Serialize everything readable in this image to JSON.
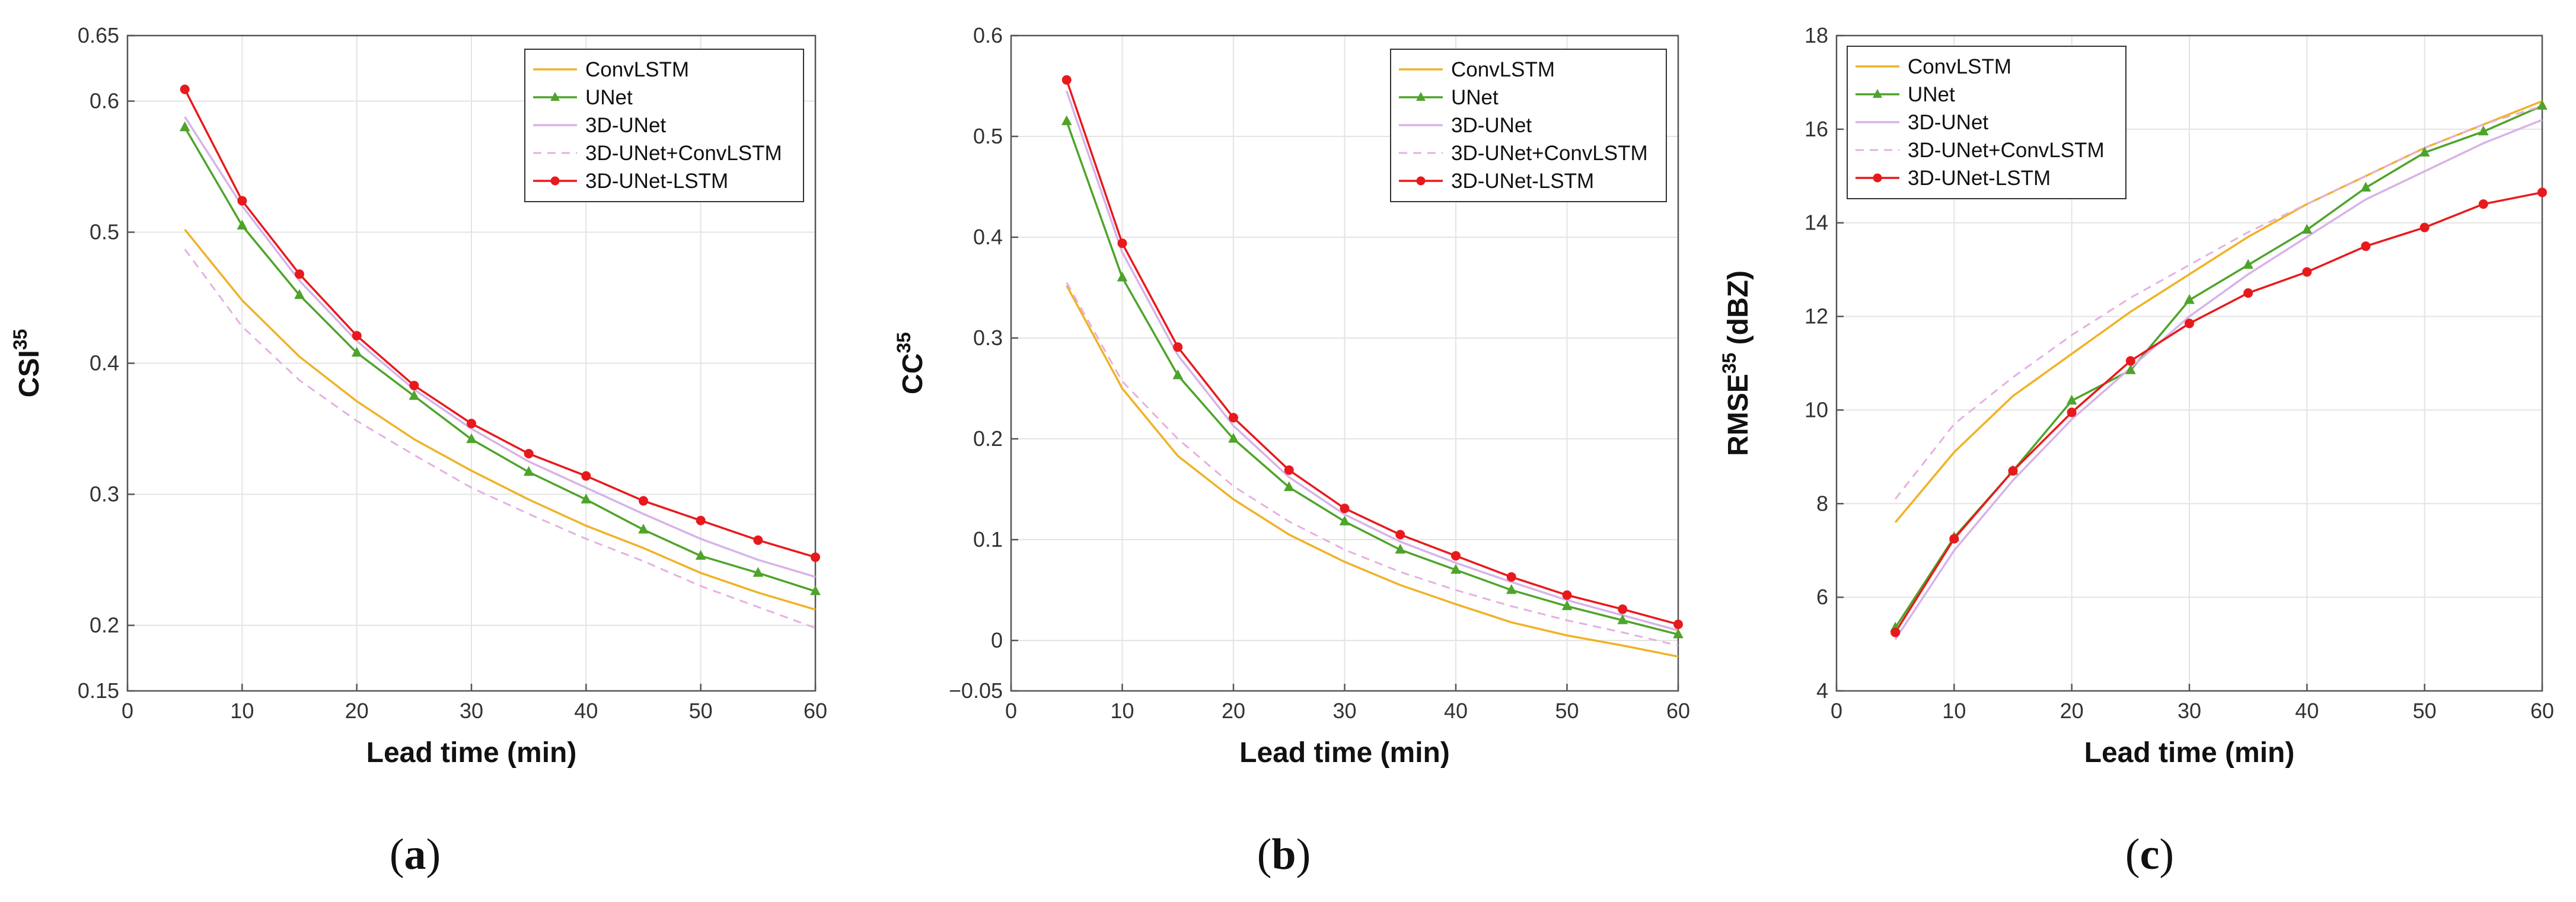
{
  "colors": {
    "ConvLSTM": "#f0b226",
    "UNet": "#4ea42a",
    "3D-UNet": "#d7b3e8",
    "3D-UNet+ConvLSTM": "#e6b0e0",
    "3D-UNet-LSTM": "#e8191c"
  },
  "chart_data": [
    {
      "type": "line",
      "caption": "a",
      "xlabel": "Lead time (min)",
      "ylabel": "CSI",
      "ylabel_sup": "35",
      "xlim": [
        0,
        60
      ],
      "ylim": [
        0.15,
        0.65
      ],
      "xticks": [
        "0",
        "10",
        "20",
        "30",
        "40",
        "50",
        "60"
      ],
      "yticks": [
        "0.15",
        "0.2",
        "0.3",
        "0.4",
        "0.5",
        "0.6",
        "0.65"
      ],
      "ytick_values": [
        0.15,
        0.2,
        0.3,
        0.4,
        0.5,
        0.6,
        0.65
      ],
      "grid": true,
      "legend": "top-right",
      "x": [
        5,
        10,
        15,
        20,
        25,
        30,
        35,
        40,
        45,
        50,
        55,
        60
      ],
      "series": [
        {
          "name": "ConvLSTM",
          "style": "solid",
          "marker": "none",
          "values": [
            0.502,
            0.448,
            0.405,
            0.371,
            0.342,
            0.318,
            0.296,
            0.276,
            0.259,
            0.24,
            0.225,
            0.212
          ]
        },
        {
          "name": "UNet",
          "style": "solid",
          "marker": "triangle",
          "values": [
            0.58,
            0.505,
            0.452,
            0.408,
            0.375,
            0.342,
            0.317,
            0.296,
            0.273,
            0.253,
            0.24,
            0.226
          ]
        },
        {
          "name": "3D-UNet",
          "style": "solid",
          "marker": "none",
          "values": [
            0.588,
            0.52,
            0.463,
            0.417,
            0.38,
            0.35,
            0.325,
            0.305,
            0.285,
            0.266,
            0.25,
            0.237
          ]
        },
        {
          "name": "3D-UNet+ConvLSTM",
          "style": "dashed",
          "marker": "none",
          "values": [
            0.487,
            0.428,
            0.387,
            0.356,
            0.33,
            0.305,
            0.285,
            0.266,
            0.249,
            0.23,
            0.214,
            0.198
          ]
        },
        {
          "name": "3D-UNet-LSTM",
          "style": "solid",
          "marker": "dot",
          "values": [
            0.609,
            0.524,
            0.468,
            0.421,
            0.383,
            0.354,
            0.331,
            0.314,
            0.295,
            0.28,
            0.265,
            0.252
          ]
        }
      ]
    },
    {
      "type": "line",
      "caption": "b",
      "xlabel": "Lead time (min)",
      "ylabel": "CC",
      "ylabel_sup": "35",
      "xlim": [
        0,
        60
      ],
      "ylim": [
        -0.05,
        0.6
      ],
      "xticks": [
        "0",
        "10",
        "20",
        "30",
        "40",
        "50",
        "60"
      ],
      "yticks": [
        "−0.05",
        "0",
        "0.1",
        "0.2",
        "0.3",
        "0.4",
        "0.5",
        "0.6"
      ],
      "ytick_values": [
        -0.05,
        0,
        0.1,
        0.2,
        0.3,
        0.4,
        0.5,
        0.6
      ],
      "grid": true,
      "legend": "top-right",
      "x": [
        5,
        10,
        15,
        20,
        25,
        30,
        35,
        40,
        45,
        50,
        55,
        60
      ],
      "series": [
        {
          "name": "ConvLSTM",
          "style": "solid",
          "marker": "none",
          "values": [
            0.352,
            0.25,
            0.183,
            0.14,
            0.105,
            0.078,
            0.055,
            0.036,
            0.018,
            0.005,
            -0.005,
            -0.016
          ]
        },
        {
          "name": "UNet",
          "style": "solid",
          "marker": "triangle",
          "values": [
            0.515,
            0.36,
            0.263,
            0.2,
            0.152,
            0.118,
            0.09,
            0.07,
            0.05,
            0.034,
            0.02,
            0.006
          ]
        },
        {
          "name": "3D-UNet",
          "style": "solid",
          "marker": "none",
          "values": [
            0.545,
            0.385,
            0.283,
            0.213,
            0.162,
            0.125,
            0.098,
            0.077,
            0.058,
            0.04,
            0.025,
            0.01
          ]
        },
        {
          "name": "3D-UNet+ConvLSTM",
          "style": "dashed",
          "marker": "none",
          "values": [
            0.355,
            0.257,
            0.2,
            0.153,
            0.118,
            0.09,
            0.068,
            0.05,
            0.034,
            0.02,
            0.008,
            -0.005
          ]
        },
        {
          "name": "3D-UNet-LSTM",
          "style": "solid",
          "marker": "dot",
          "values": [
            0.556,
            0.394,
            0.291,
            0.221,
            0.169,
            0.131,
            0.105,
            0.084,
            0.063,
            0.045,
            0.031,
            0.016
          ]
        }
      ]
    },
    {
      "type": "line",
      "caption": "c",
      "xlabel": "Lead time (min)",
      "ylabel": "RMSE",
      "ylabel_sup": "35",
      "ylabel_suffix": " (dBZ)",
      "xlim": [
        0,
        60
      ],
      "ylim": [
        4,
        18
      ],
      "xticks": [
        "0",
        "10",
        "20",
        "30",
        "40",
        "50",
        "60"
      ],
      "yticks": [
        "4",
        "6",
        "8",
        "10",
        "12",
        "14",
        "16",
        "18"
      ],
      "ytick_values": [
        4,
        6,
        8,
        10,
        12,
        14,
        16,
        18
      ],
      "grid": true,
      "legend": "top-left",
      "x": [
        5,
        10,
        15,
        20,
        25,
        30,
        35,
        40,
        45,
        50,
        55,
        60
      ],
      "series": [
        {
          "name": "ConvLSTM",
          "style": "solid",
          "marker": "none",
          "values": [
            7.6,
            9.1,
            10.3,
            11.2,
            12.1,
            12.9,
            13.7,
            14.4,
            15.0,
            15.6,
            16.1,
            16.6
          ]
        },
        {
          "name": "UNet",
          "style": "solid",
          "marker": "triangle",
          "values": [
            5.35,
            7.28,
            8.7,
            10.2,
            10.85,
            12.35,
            13.1,
            13.85,
            14.75,
            15.5,
            15.95,
            16.5
          ]
        },
        {
          "name": "3D-UNet",
          "style": "solid",
          "marker": "none",
          "values": [
            5.1,
            7.0,
            8.5,
            9.8,
            10.9,
            12.0,
            12.9,
            13.7,
            14.5,
            15.1,
            15.7,
            16.2
          ]
        },
        {
          "name": "3D-UNet+ConvLSTM",
          "style": "dashed",
          "marker": "none",
          "values": [
            8.1,
            9.7,
            10.7,
            11.6,
            12.4,
            13.1,
            13.8,
            14.4,
            15.0,
            15.6,
            16.1,
            16.5
          ]
        },
        {
          "name": "3D-UNet-LSTM",
          "style": "solid",
          "marker": "dot",
          "values": [
            5.25,
            7.25,
            8.7,
            9.95,
            11.05,
            11.85,
            12.5,
            12.95,
            13.5,
            13.9,
            14.4,
            14.65
          ]
        }
      ]
    }
  ]
}
